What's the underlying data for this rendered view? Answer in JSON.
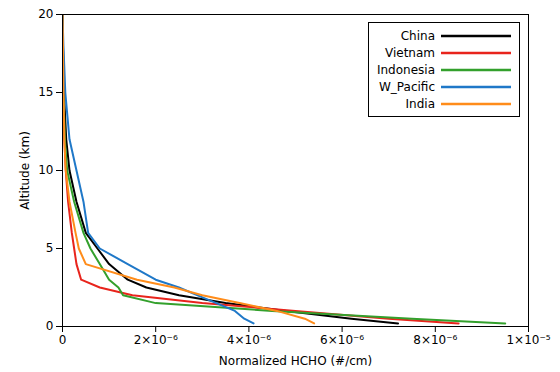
{
  "chart_data": {
    "type": "line",
    "xlabel": "Normalized HCHO (#/cm)",
    "ylabel": "Altitude (km)",
    "y": [
      0.2,
      0.5,
      1,
      1.5,
      2,
      2.5,
      3,
      4,
      5,
      6,
      8,
      10,
      12,
      15,
      18,
      20
    ],
    "series": [
      {
        "name": "China",
        "color": "#000000",
        "values": [
          7.2e-06,
          6.2e-06,
          4.8e-06,
          3.5e-06,
          2.5e-06,
          1.8e-06,
          1.4e-06,
          1e-06,
          7.5e-07,
          5e-07,
          3e-07,
          1.5e-07,
          8e-08,
          3e-08,
          1e-08,
          0
        ]
      },
      {
        "name": "Vietnam",
        "color": "#e8241c",
        "values": [
          8.5e-06,
          7e-06,
          5e-06,
          3e-06,
          1.5e-06,
          8e-07,
          4e-07,
          3e-07,
          2.5e-07,
          2e-07,
          1.2e-07,
          7e-08,
          4e-08,
          2e-08,
          1e-08,
          0
        ]
      },
      {
        "name": "Indonesia",
        "color": "#33a02c",
        "values": [
          9.5e-06,
          7.5e-06,
          4.5e-06,
          2e-06,
          1.3e-06,
          1.2e-06,
          1e-06,
          8e-07,
          6e-07,
          4.5e-07,
          2.5e-07,
          1e-07,
          5e-08,
          2e-08,
          1e-08,
          0
        ]
      },
      {
        "name": "W_Pacific",
        "color": "#1f78c8",
        "values": [
          4.1e-06,
          3.9e-06,
          3.7e-06,
          3.3e-06,
          2.9e-06,
          2.5e-06,
          2e-06,
          1.4e-06,
          8e-07,
          5.5e-07,
          4.5e-07,
          3e-07,
          1.5e-07,
          6e-08,
          2e-08,
          0
        ]
      },
      {
        "name": "India",
        "color": "#ff8c1a",
        "values": [
          5.4e-06,
          5.2e-06,
          4.6e-06,
          3.8e-06,
          3e-06,
          2.4e-06,
          1.6e-06,
          5e-07,
          3.5e-07,
          2.8e-07,
          1.5e-07,
          7e-08,
          4e-08,
          2e-08,
          1e-08,
          0
        ]
      }
    ],
    "xlim": [
      0,
      1e-05
    ],
    "xticks": [
      0,
      {
        "value": 2e-06,
        "label": "2×10⁻⁶"
      },
      {
        "value": 4e-06,
        "label": "4×10⁻⁶"
      },
      {
        "value": 6e-06,
        "label": "6×10⁻⁶"
      },
      {
        "value": 8e-06,
        "label": "8×10⁻⁶"
      },
      {
        "value": 1e-05,
        "label": "1×10⁻⁵"
      }
    ],
    "ylim": [
      0,
      20
    ],
    "yticks": [
      0,
      5,
      10,
      15,
      20
    ],
    "legend": "top-right",
    "grid": false
  }
}
